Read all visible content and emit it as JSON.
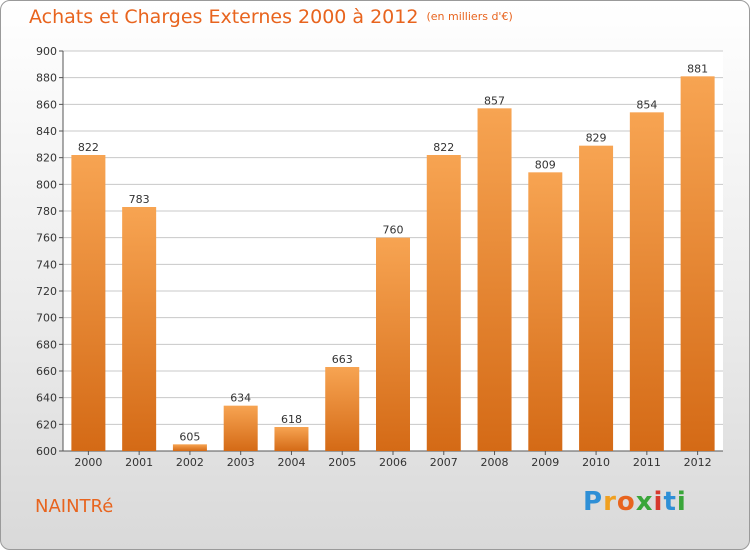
{
  "title": "Achats et Charges Externes 2000 à 2012",
  "unit": "(en milliers d'€)",
  "commune": "NAINTRé",
  "logo": {
    "letters": [
      "P",
      "r",
      "o",
      "x",
      "i",
      "t",
      "i"
    ],
    "colors": [
      "#2e8fd6",
      "#f0a020",
      "#e8641e",
      "#3aa63a",
      "#d6392e",
      "#2e8fd6",
      "#3aa63a"
    ]
  },
  "colors": {
    "accent": "#e8641e",
    "bar_top": "#f7a452",
    "bar_bottom": "#d46a16",
    "grid": "#c8c8c8"
  },
  "chart_data": {
    "type": "bar",
    "categories": [
      "2000",
      "2001",
      "2002",
      "2003",
      "2004",
      "2005",
      "2006",
      "2007",
      "2008",
      "2009",
      "2010",
      "2011",
      "2012"
    ],
    "values": [
      822,
      783,
      605,
      634,
      618,
      663,
      760,
      822,
      857,
      809,
      829,
      854,
      881
    ],
    "yticks": [
      600,
      620,
      640,
      660,
      680,
      700,
      720,
      740,
      760,
      780,
      800,
      820,
      840,
      860,
      880,
      900
    ],
    "ylim": [
      600,
      900
    ],
    "grid": true,
    "data_labels": true
  }
}
